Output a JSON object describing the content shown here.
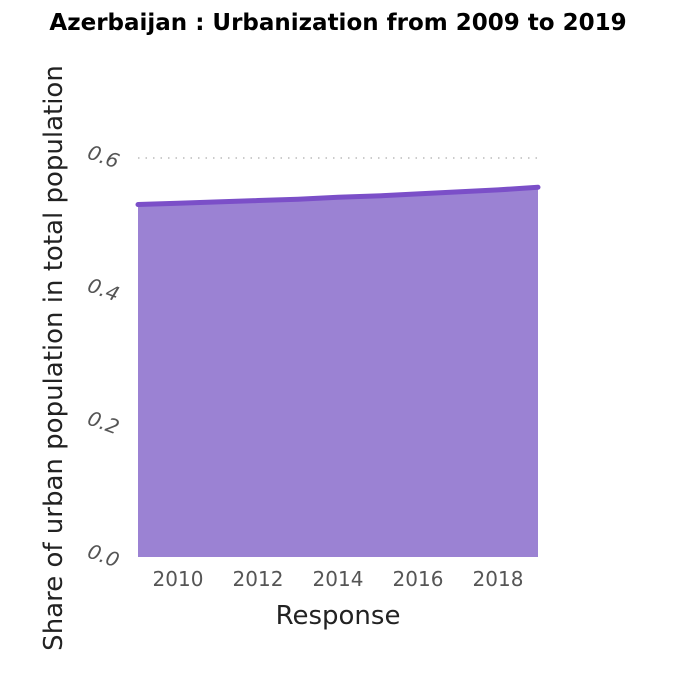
{
  "chart_data": {
    "type": "area",
    "title": "Azerbaijan : Urbanization from 2009 to 2019",
    "xlabel": "Response",
    "ylabel": "Share of urban population in total population",
    "x": [
      2009,
      2010,
      2011,
      2012,
      2013,
      2014,
      2015,
      2016,
      2017,
      2018,
      2019
    ],
    "series": [
      {
        "values": [
          0.53,
          0.532,
          0.534,
          0.536,
          0.538,
          0.541,
          0.543,
          0.546,
          0.549,
          0.552,
          0.556
        ]
      }
    ],
    "xticks": [
      "2010",
      "2012",
      "2014",
      "2016",
      "2018"
    ],
    "yticks": [
      "0.0",
      "0.2",
      "0.4",
      "0.6"
    ],
    "xlim": [
      2009,
      2019
    ],
    "ylim": [
      0,
      0.6
    ],
    "grid": "horizontal-dotted",
    "colors": {
      "fill": "#9b82d3",
      "line": "#7b4fc8"
    }
  }
}
